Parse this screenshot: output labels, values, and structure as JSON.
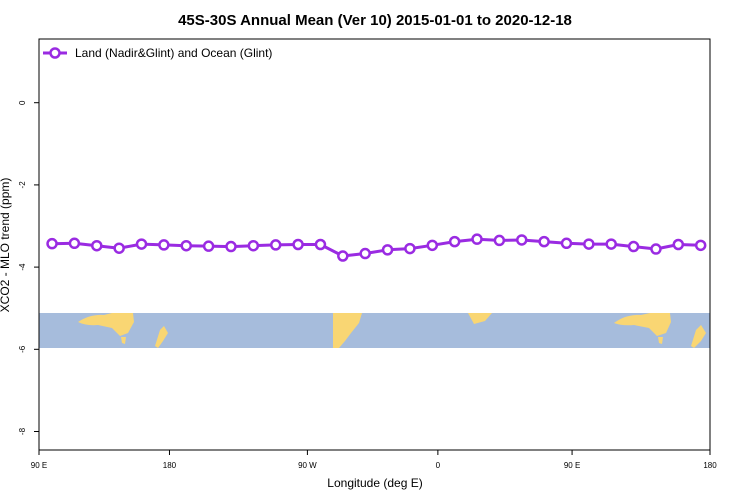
{
  "chart_data": {
    "type": "line",
    "title": "45S-30S Annual Mean (Ver 10)   2015-01-01 to 2020-12-18",
    "xlabel": "Longitude (deg E)",
    "ylabel": "XCO2 - MLO trend (ppm)",
    "xlim": [
      90,
      450
    ],
    "ylim": [
      -8.45,
      1.55
    ],
    "x_ticks": [
      {
        "value": 90,
        "label": "90 E"
      },
      {
        "value": 160,
        "label": "180"
      },
      {
        "value": 234,
        "label": "90 W"
      },
      {
        "value": 304,
        "label": "0"
      },
      {
        "value": 376,
        "label": "90 E"
      },
      {
        "value": 450,
        "label": "180"
      }
    ],
    "y_ticks": [
      {
        "value": 0,
        "label": "0"
      },
      {
        "value": -2,
        "label": "-2"
      },
      {
        "value": -4,
        "label": "-4"
      },
      {
        "value": -6,
        "label": "-6"
      },
      {
        "value": -8,
        "label": "-8"
      }
    ],
    "legend_position": "top-left",
    "grid": false,
    "series": [
      {
        "name": "Land (Nadir&Glint) and Ocean (Glint)",
        "color": "#9a2be2",
        "x": [
          97,
          109,
          121,
          133,
          145,
          157,
          169,
          181,
          193,
          205,
          217,
          229,
          241,
          253,
          265,
          277,
          289,
          301,
          313,
          325,
          337,
          349,
          361,
          373,
          385,
          397,
          409,
          421,
          433,
          445
        ],
        "y": [
          -3.43,
          -3.42,
          -3.48,
          -3.54,
          -3.44,
          -3.46,
          -3.48,
          -3.49,
          -3.5,
          -3.48,
          -3.46,
          -3.45,
          -3.45,
          -3.73,
          -3.67,
          -3.58,
          -3.55,
          -3.47,
          -3.38,
          -3.32,
          -3.35,
          -3.34,
          -3.38,
          -3.42,
          -3.44,
          -3.44,
          -3.5,
          -3.56,
          -3.45,
          -3.47
        ]
      }
    ]
  }
}
